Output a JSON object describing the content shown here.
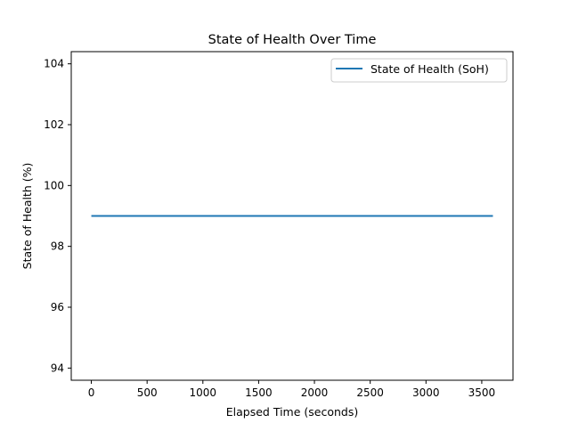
{
  "chart_data": {
    "type": "line",
    "title": "State of Health Over Time",
    "xlabel": "Elapsed Time (seconds)",
    "ylabel": "State of Health (%)",
    "xlim": [
      -180,
      3780
    ],
    "ylim": [
      93.6,
      104.4
    ],
    "x_ticks": [
      0,
      500,
      1000,
      1500,
      2000,
      2500,
      3000,
      3500
    ],
    "y_ticks": [
      94,
      96,
      98,
      100,
      102,
      104
    ],
    "x_tick_labels": [
      "0",
      "500",
      "1000",
      "1500",
      "2000",
      "2500",
      "3000",
      "3500"
    ],
    "y_tick_labels": [
      "94",
      "96",
      "98",
      "100",
      "102",
      "104"
    ],
    "grid": false,
    "legend_position": "top-right",
    "series": [
      {
        "name": "State of Health (SoH)",
        "color": "#1f77b4",
        "x": [
          0,
          3600
        ],
        "y": [
          99,
          99
        ]
      }
    ]
  }
}
